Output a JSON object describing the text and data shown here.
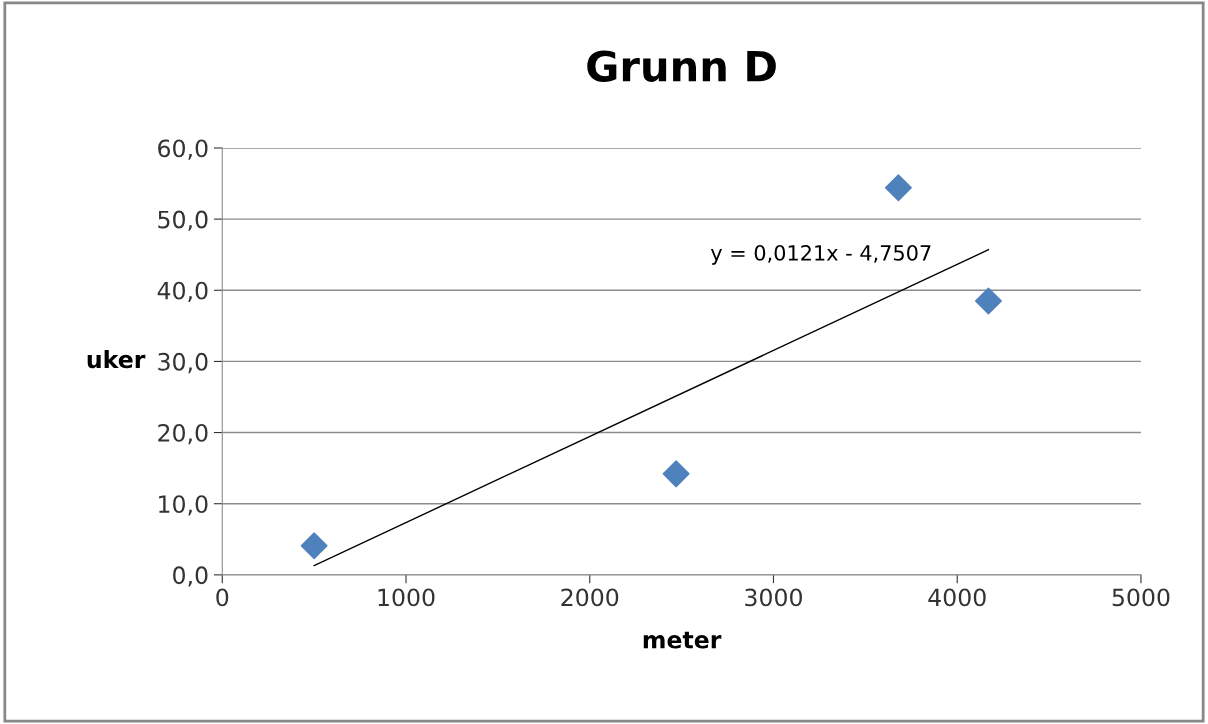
{
  "chart_data": {
    "type": "scatter",
    "title": "Grunn D",
    "xlabel": "meter",
    "ylabel": "uker",
    "series": [
      {
        "color": "#4f81bd",
        "marker": "diamond",
        "x": [
          500,
          2470,
          3680,
          4170
        ],
        "values": [
          4.1,
          14.2,
          54.4,
          38.5
        ]
      },
      {
        "type": "line",
        "color": "#000000",
        "marker": "none",
        "line_style": "solid",
        "x": [
          500,
          4170
        ],
        "values": [
          1.3,
          45.7
        ]
      }
    ],
    "annotations": [
      "y = 0,0121x - 4,7507"
    ],
    "xlim": [
      0,
      5000
    ],
    "xticks": [
      0,
      1000,
      2000,
      3000,
      4000,
      5000
    ],
    "ylim": [
      0,
      60
    ],
    "yticks": [
      {
        "value": 0,
        "label": "0,0"
      },
      {
        "value": 10,
        "label": "10,0"
      },
      {
        "value": 20,
        "label": "20,0"
      },
      {
        "value": 30,
        "label": "30,0"
      },
      {
        "value": 40,
        "label": "40,0"
      },
      {
        "value": 50,
        "label": "50,0"
      },
      {
        "value": 60,
        "label": "60,0"
      }
    ],
    "grid": "y",
    "legend": false
  }
}
